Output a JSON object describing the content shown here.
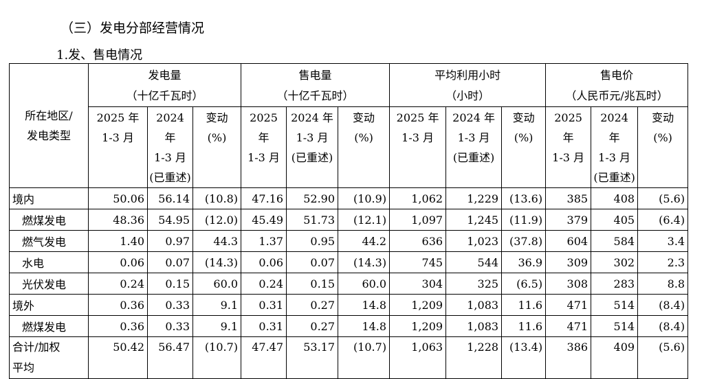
{
  "heading": "（三）发电分部经营情况",
  "subheading": "1.发、售电情况",
  "table": {
    "region_header": [
      "所在地区/",
      "发电类型"
    ],
    "groups": [
      {
        "title": "发电量",
        "unit": "（十亿千瓦时）"
      },
      {
        "title": "售电量",
        "unit": "（十亿千瓦时）"
      },
      {
        "title": "平均利用小时",
        "unit": "（小时）"
      },
      {
        "title": "售电价",
        "unit": "（人民币元/兆瓦时）"
      }
    ],
    "sub_headers": [
      {
        "line1": "2025 年",
        "line2": "1-3 月",
        "line3": ""
      },
      {
        "line1": "2024 年",
        "line2": "1-3 月",
        "line3": "(已重述)"
      },
      {
        "line1": "变动",
        "line2": "(%)",
        "line3": ""
      }
    ],
    "rows": [
      {
        "label": "境内",
        "values": [
          "50.06",
          "56.14",
          "(10.8)",
          "47.16",
          "52.90",
          "(10.9)",
          "1,062",
          "1,229",
          "(13.6)",
          "385",
          "408",
          "(5.6)"
        ]
      },
      {
        "label": "燃煤发电",
        "values": [
          "48.36",
          "54.95",
          "(12.0)",
          "45.49",
          "51.73",
          "(12.1)",
          "1,097",
          "1,245",
          "(11.9)",
          "379",
          "405",
          "(6.4)"
        ]
      },
      {
        "label": "燃气发电",
        "values": [
          "1.40",
          "0.97",
          "44.3",
          "1.37",
          "0.95",
          "44.2",
          "636",
          "1,023",
          "(37.8)",
          "604",
          "584",
          "3.4"
        ]
      },
      {
        "label": "水电",
        "values": [
          "0.06",
          "0.07",
          "(14.3)",
          "0.06",
          "0.07",
          "(14.3)",
          "745",
          "544",
          "36.9",
          "309",
          "302",
          "2.3"
        ]
      },
      {
        "label": "光伏发电",
        "values": [
          "0.24",
          "0.15",
          "60.0",
          "0.24",
          "0.15",
          "60.0",
          "304",
          "325",
          "(6.5)",
          "308",
          "283",
          "8.8"
        ]
      },
      {
        "label": "境外",
        "values": [
          "0.36",
          "0.33",
          "9.1",
          "0.31",
          "0.27",
          "14.8",
          "1,209",
          "1,083",
          "11.6",
          "471",
          "514",
          "(8.4)"
        ]
      },
      {
        "label": "燃煤发电",
        "values": [
          "0.36",
          "0.33",
          "9.1",
          "0.31",
          "0.27",
          "14.8",
          "1,209",
          "1,083",
          "11.6",
          "471",
          "514",
          "(8.4)"
        ]
      }
    ],
    "total_row": {
      "label_line1": "合计/加权",
      "label_line2": "平均",
      "values": [
        "50.42",
        "56.47",
        "(10.7)",
        "47.47",
        "53.17",
        "(10.7)",
        "1,063",
        "1,228",
        "(13.4)",
        "386",
        "409",
        "(5.6)"
      ]
    }
  }
}
